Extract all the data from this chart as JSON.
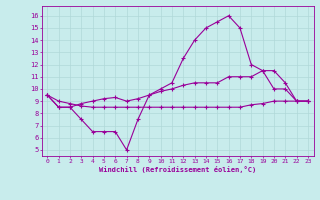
{
  "xlabel": "Windchill (Refroidissement éolien,°C)",
  "bg_color": "#c8ecec",
  "line_color": "#990099",
  "grid_color": "#b0d8d8",
  "x_ticks": [
    0,
    1,
    2,
    3,
    4,
    5,
    6,
    7,
    8,
    9,
    10,
    11,
    12,
    13,
    14,
    15,
    16,
    17,
    18,
    19,
    20,
    21,
    22,
    23
  ],
  "y_ticks": [
    5,
    6,
    7,
    8,
    9,
    10,
    11,
    12,
    13,
    14,
    15,
    16
  ],
  "ylim": [
    4.5,
    16.8
  ],
  "xlim": [
    -0.5,
    23.5
  ],
  "line1": [
    9.5,
    8.5,
    8.5,
    7.5,
    6.5,
    6.5,
    6.5,
    5.0,
    7.5,
    9.5,
    10.0,
    10.5,
    12.5,
    14.0,
    15.0,
    15.5,
    16.0,
    15.0,
    12.0,
    11.5,
    10.0,
    10.0,
    9.0,
    9.0
  ],
  "line2": [
    9.5,
    8.5,
    8.5,
    8.8,
    9.0,
    9.2,
    9.3,
    9.0,
    9.2,
    9.5,
    9.8,
    10.0,
    10.3,
    10.5,
    10.5,
    10.5,
    11.0,
    11.0,
    11.0,
    11.5,
    11.5,
    10.5,
    9.0,
    9.0
  ],
  "line3": [
    9.5,
    9.0,
    8.8,
    8.6,
    8.5,
    8.5,
    8.5,
    8.5,
    8.5,
    8.5,
    8.5,
    8.5,
    8.5,
    8.5,
    8.5,
    8.5,
    8.5,
    8.5,
    8.7,
    8.8,
    9.0,
    9.0,
    9.0,
    9.0
  ]
}
